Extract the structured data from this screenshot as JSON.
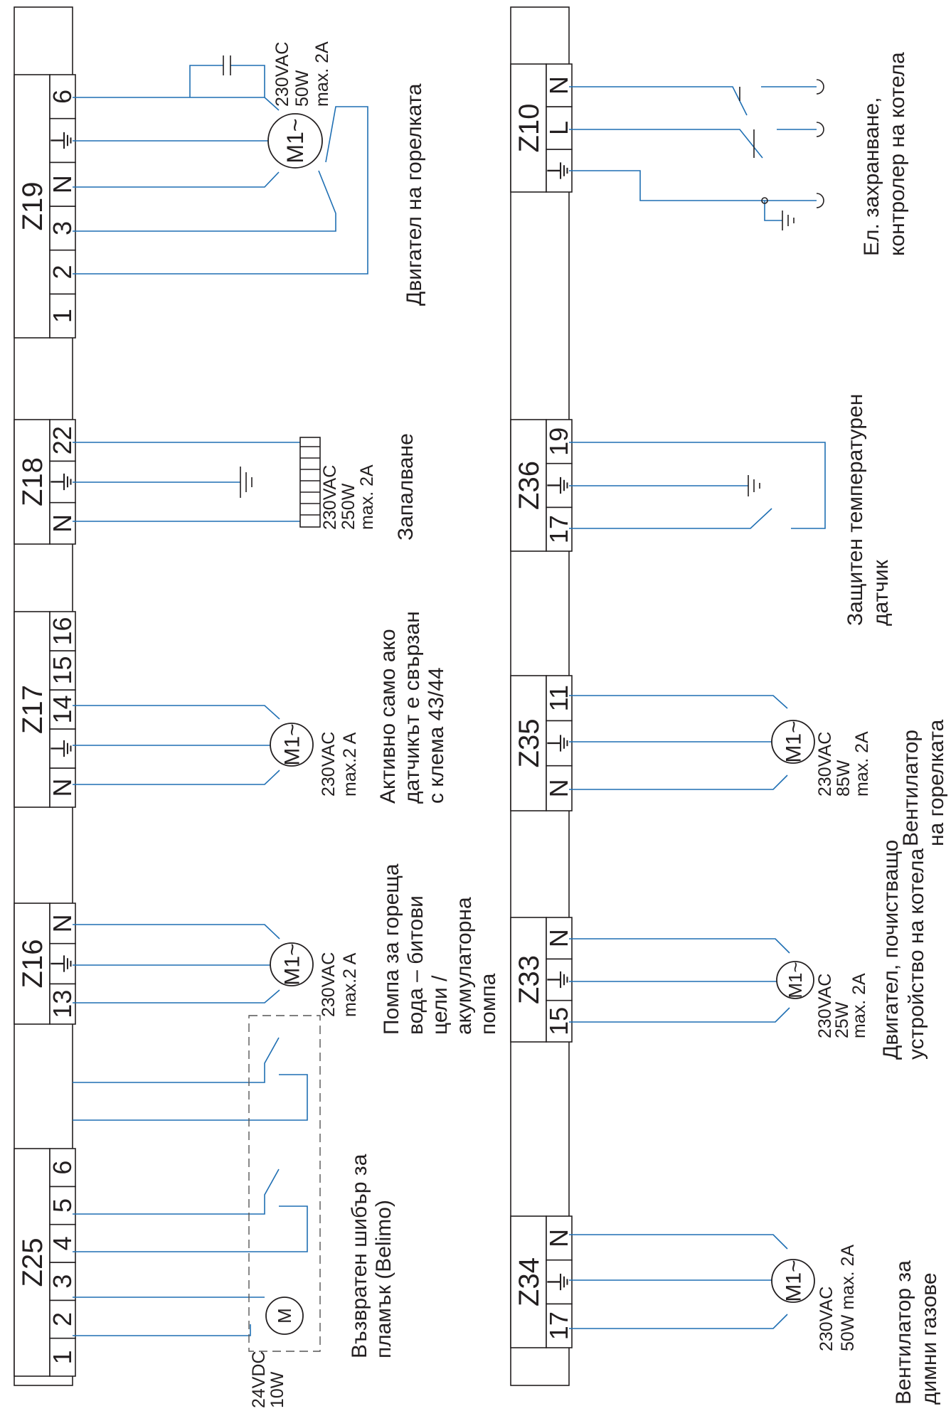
{
  "blocks": [
    {
      "id": "z25",
      "name": "Z25",
      "terminals": [
        "1",
        "2",
        "3",
        "4",
        "5",
        "6"
      ]
    },
    {
      "id": "z16",
      "name": "Z16",
      "terminals": [
        "13",
        "⏚",
        "N"
      ]
    },
    {
      "id": "z17",
      "name": "Z17",
      "terminals": [
        "N",
        "⏚",
        "14",
        "15",
        "16"
      ]
    },
    {
      "id": "z18",
      "name": "Z18",
      "terminals": [
        "N",
        "⏚",
        "22"
      ]
    },
    {
      "id": "z19",
      "name": "Z19",
      "terminals": [
        "1",
        "2",
        "3",
        "N",
        "⏚",
        "6"
      ]
    },
    {
      "id": "z34",
      "name": "Z34",
      "terminals": [
        "17",
        "⏚",
        "N"
      ]
    },
    {
      "id": "z33",
      "name": "Z33",
      "terminals": [
        "15",
        "⏚",
        "N"
      ]
    },
    {
      "id": "z35",
      "name": "Z35",
      "terminals": [
        "N",
        "⏚",
        "11"
      ]
    },
    {
      "id": "z36",
      "name": "Z36",
      "terminals": [
        "17",
        "⏚",
        "19"
      ]
    },
    {
      "id": "z10",
      "name": "Z10",
      "terminals": [
        "⏚",
        "L",
        "N"
      ]
    }
  ],
  "motors": {
    "z25": "M",
    "z16": "M1~",
    "z17": "M1~",
    "z19": "M1~",
    "z34": "M1~",
    "z33": "M1~",
    "z35": "M1~"
  },
  "specs": {
    "z25": [
      "24VDC",
      "10W"
    ],
    "z16": [
      "230VAC",
      "max.2 A"
    ],
    "z17": [
      "230VAC",
      "max.2 A"
    ],
    "z18": [
      "230VAC",
      "250W",
      "max. 2A"
    ],
    "z19": [
      "230VAC",
      "50W",
      "max. 2A"
    ],
    "z34": [
      "230VAC",
      "50W max. 2A"
    ],
    "z33": [
      "230VAC",
      "25W",
      "max. 2A"
    ],
    "z35": [
      "230VAC",
      "85W",
      "max. 2A"
    ]
  },
  "descriptions": {
    "z25": [
      "Възвратен шибър за",
      "пламък (Belimo)"
    ],
    "z16": [
      "Помпа за гореща",
      "вода – битови",
      "цели /",
      "акумулаторна",
      "помпа"
    ],
    "z17": [
      "Активно само ако",
      "датчикът е свързан",
      "с клема 43/44"
    ],
    "z18": [
      "Запалване"
    ],
    "z19": [
      "Двигател на горелката"
    ],
    "z34": [
      "Вентилатор за",
      "димни газове"
    ],
    "z33": [
      "Двигател, почистващо",
      "устройство на котела"
    ],
    "z35": [
      "Вентилатор",
      "на горелката"
    ],
    "z36": [
      "Защитен температурен",
      "датчик"
    ],
    "z10": [
      "Ел. захранване,",
      "контролер на котела"
    ]
  },
  "colors": {
    "wire": "#1f6fb3",
    "line": "#231f20"
  }
}
